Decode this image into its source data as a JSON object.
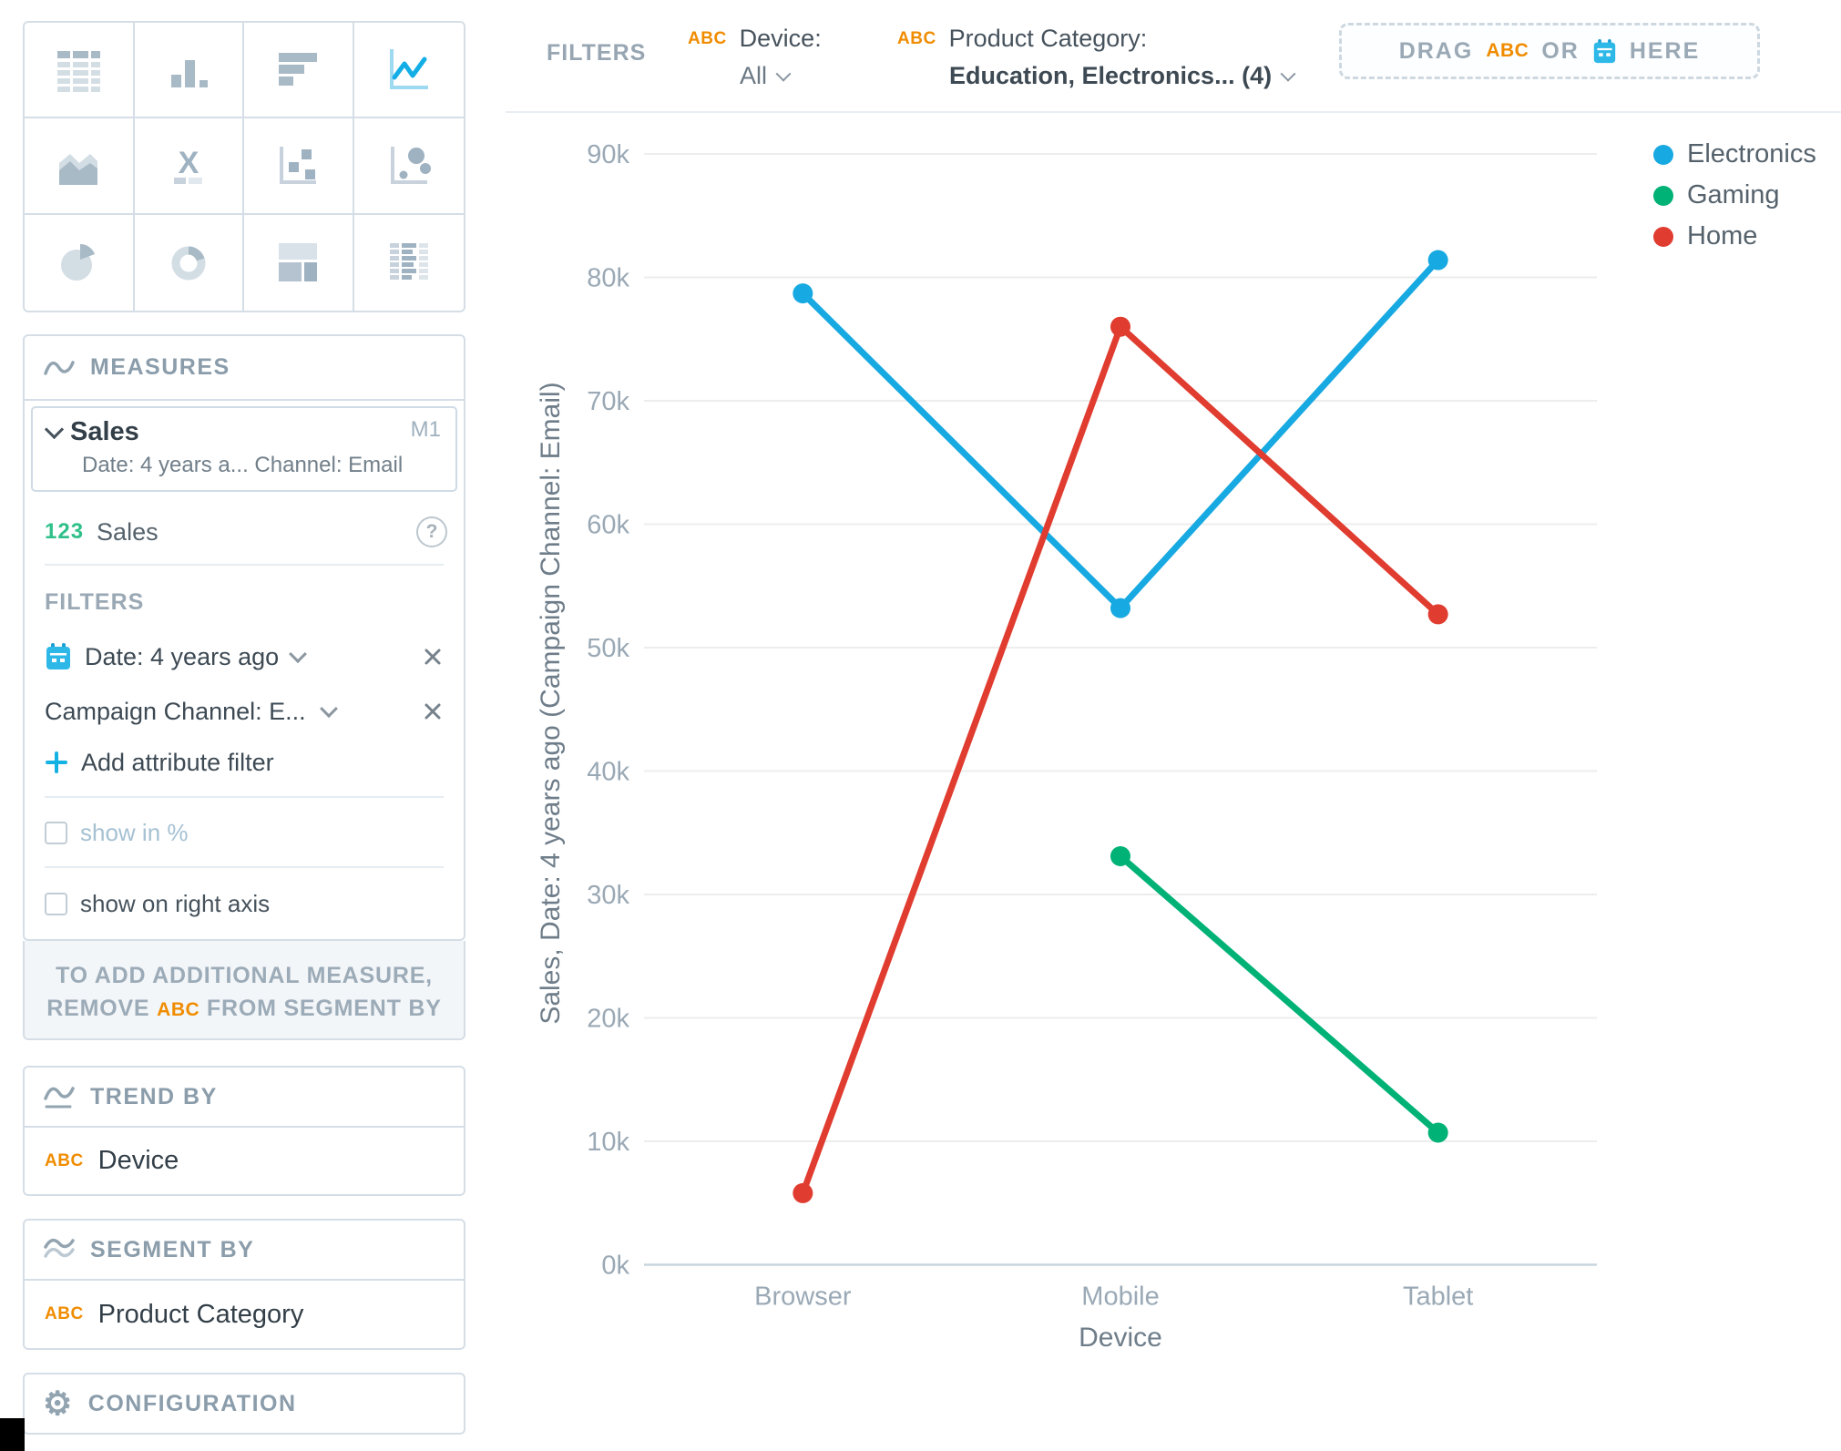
{
  "sidebar": {
    "chart_picker": {
      "items": [
        {
          "icon": "table-icon"
        },
        {
          "icon": "column-chart-icon"
        },
        {
          "icon": "bar-chart-icon"
        },
        {
          "icon": "line-chart-icon",
          "selected": true
        },
        {
          "icon": "area-chart-icon"
        },
        {
          "icon": "headline-icon"
        },
        {
          "icon": "scatter-plot-icon"
        },
        {
          "icon": "bubble-chart-icon"
        },
        {
          "icon": "pie-chart-icon"
        },
        {
          "icon": "donut-chart-icon"
        },
        {
          "icon": "treemap-icon"
        },
        {
          "icon": "heatmap-icon"
        }
      ]
    },
    "measures": {
      "header": "MEASURES",
      "measure_title": "Sales",
      "measure_badge": "M1",
      "measure_subtitle": "Date: 4 years a... Channel: Email",
      "field_prefix": "123",
      "field_label": "Sales",
      "filters_label": "FILTERS",
      "date_filter": "Date: 4 years ago",
      "attribute_filter": "Campaign Channel: E...",
      "add_attribute_filter": "Add attribute filter",
      "show_in_percent": "show in %",
      "show_on_right_axis": "show on right axis"
    },
    "measures_hint": {
      "line1": "TO ADD ADDITIONAL MEASURE,",
      "line2_prefix": "REMOVE",
      "abc": "ABC",
      "line2_suffix": "FROM SEGMENT BY"
    },
    "trend_by": {
      "header": "TREND BY",
      "item_icon": "ABC",
      "item_label": "Device"
    },
    "segment_by": {
      "header": "SEGMENT BY",
      "item_icon": "ABC",
      "item_label": "Product Category"
    },
    "configuration": {
      "header": "CONFIGURATION"
    }
  },
  "topbar": {
    "filters_label": "FILTERS",
    "device_filter": {
      "icon": "ABC",
      "label": "Device:",
      "value": "All"
    },
    "category_filter": {
      "icon": "ABC",
      "label": "Product Category:",
      "value": "Education, Electronics... (4)"
    },
    "dropzone": {
      "drag": "DRAG",
      "abc": "ABC",
      "or": "OR",
      "here": "HERE"
    }
  },
  "chart_data": {
    "type": "line",
    "categories": [
      "Browser",
      "Mobile",
      "Tablet"
    ],
    "series": [
      {
        "name": "Electronics",
        "color": "#17A9E1",
        "values": [
          78700,
          53200,
          81400
        ]
      },
      {
        "name": "Gaming",
        "color": "#00B275",
        "values": [
          null,
          33100,
          10700
        ]
      },
      {
        "name": "Home",
        "color": "#E03C30",
        "values": [
          5800,
          76000,
          52700
        ]
      }
    ],
    "xlabel": "Device",
    "ylabel": "Sales, Date: 4 years ago (Campaign Channel: Email)",
    "ylim": [
      0,
      90000
    ],
    "ytick_step": 10000,
    "ytick_labels": [
      "0k",
      "10k",
      "20k",
      "30k",
      "40k",
      "50k",
      "60k",
      "70k",
      "80k",
      "90k"
    ],
    "grid": true,
    "legend_position": "top-right"
  },
  "colors": {
    "accent_blue": "#14B2E2",
    "attribute_orange": "#F08C00",
    "series_electronics": "#17A9E1",
    "series_gaming": "#00B275",
    "series_home": "#E03C30",
    "panel_border": "#D5DEE6",
    "grid_line": "#EDEDED"
  }
}
